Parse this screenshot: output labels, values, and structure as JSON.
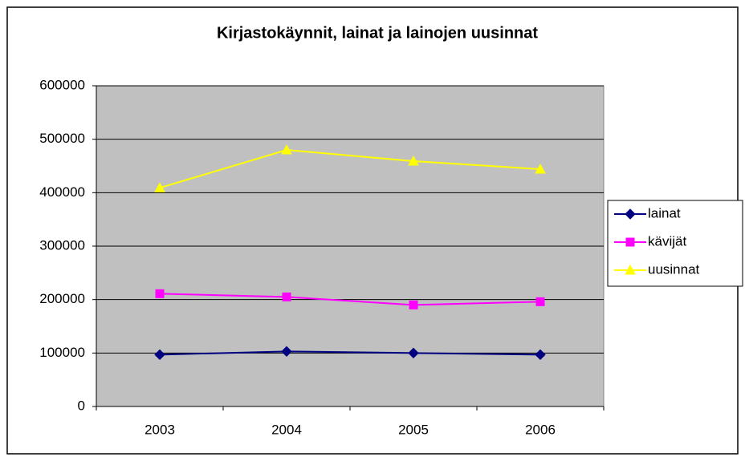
{
  "chart_data": {
    "type": "line",
    "title": "Kirjastokäynnit, lainat ja lainojen uusinnat",
    "categories": [
      "2003",
      "2004",
      "2005",
      "2006"
    ],
    "series": [
      {
        "name": "lainat",
        "color": "#000080",
        "marker": "diamond",
        "values": [
          97000,
          103000,
          100000,
          97000
        ]
      },
      {
        "name": "kävijät",
        "color": "#ff00ff",
        "marker": "square",
        "values": [
          211000,
          205000,
          190000,
          196000
        ]
      },
      {
        "name": "uusinnat",
        "color": "#ffff00",
        "marker": "triangle",
        "values": [
          409000,
          480000,
          459000,
          444000
        ]
      }
    ],
    "ylim": [
      0,
      600000
    ],
    "yticks": [
      0,
      100000,
      200000,
      300000,
      400000,
      500000,
      600000
    ],
    "grid": true,
    "legend": "right"
  }
}
